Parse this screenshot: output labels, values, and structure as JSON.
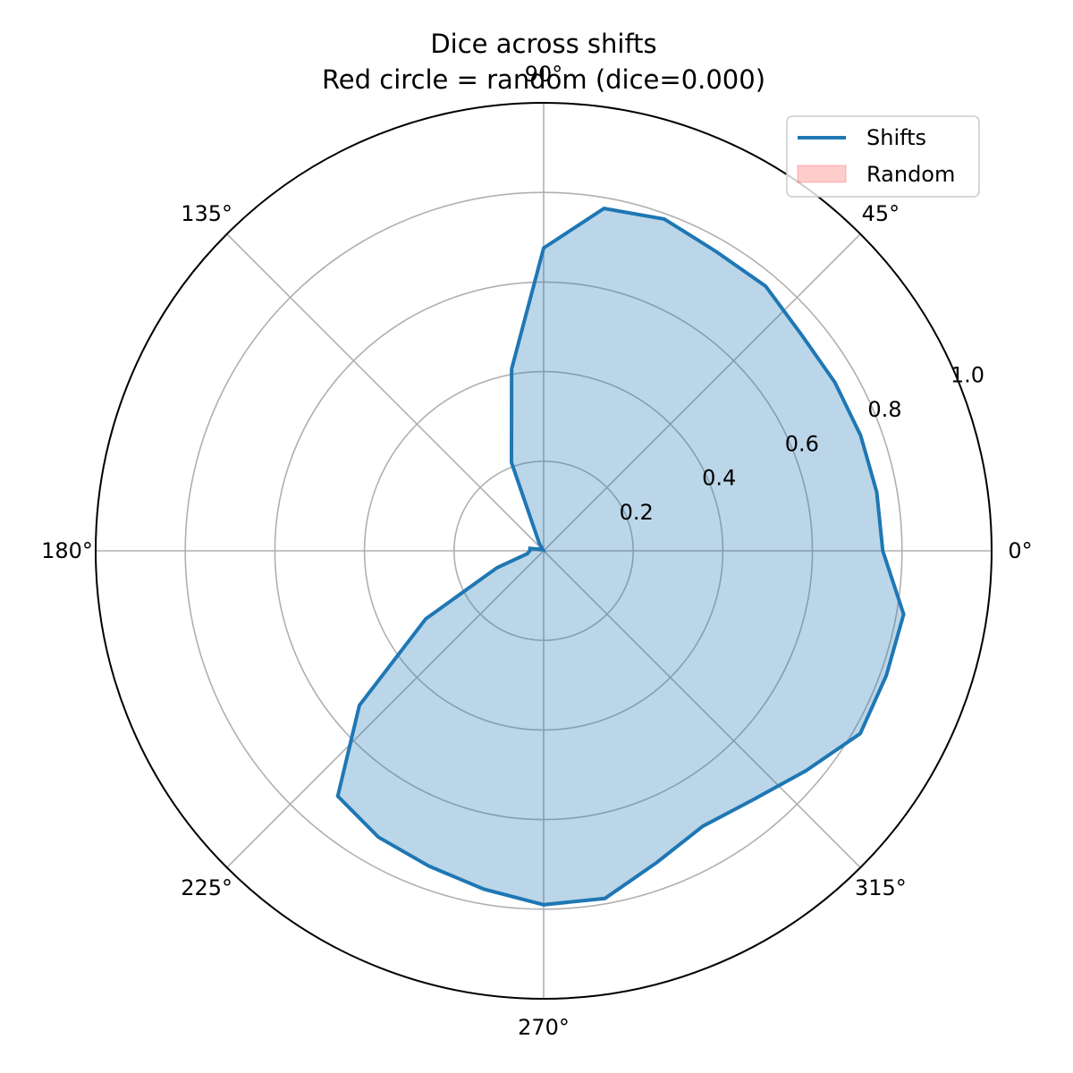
{
  "chart_data": {
    "type": "line",
    "projection": "polar",
    "title": [
      "Dice across shifts",
      "Red circle = random (dice=0.000)"
    ],
    "angle_unit": "degrees",
    "theta_ticks": [
      0,
      45,
      90,
      135,
      180,
      225,
      270,
      315
    ],
    "theta_tick_labels": [
      "0°",
      "45°",
      "90°",
      "135°",
      "180°",
      "225°",
      "270°",
      "315°"
    ],
    "r_ticks": [
      0.2,
      0.4,
      0.6,
      0.8,
      1.0
    ],
    "r_tick_labels": [
      "0.2",
      "0.4",
      "0.6",
      "0.8",
      "1.0"
    ],
    "rlim": [
      0,
      1.0
    ],
    "grid": true,
    "legend": {
      "position": "top-right",
      "entries": [
        "Shifts",
        "Random"
      ]
    },
    "series": [
      {
        "name": "Shifts",
        "color": "#1f77b4",
        "fill_color": "#1f77b4",
        "fill_alpha": 0.3,
        "points": [
          {
            "theta": 0,
            "r": 0.757
          },
          {
            "theta": 10,
            "r": 0.755
          },
          {
            "theta": 20,
            "r": 0.753
          },
          {
            "theta": 30,
            "r": 0.751
          },
          {
            "theta": 40,
            "r": 0.751
          },
          {
            "theta": 50,
            "r": 0.771
          },
          {
            "theta": 60,
            "r": 0.771
          },
          {
            "theta": 70,
            "r": 0.788
          },
          {
            "theta": 80,
            "r": 0.776
          },
          {
            "theta": 90,
            "r": 0.676
          },
          {
            "theta": 100,
            "r": 0.412
          },
          {
            "theta": 110,
            "r": 0.21
          },
          {
            "theta": 120,
            "r": 0.02
          },
          {
            "theta": 130,
            "r": 0.003
          },
          {
            "theta": 140,
            "r": 0.004
          },
          {
            "theta": 150,
            "r": 0.005
          },
          {
            "theta": 160,
            "r": 0.01
          },
          {
            "theta": 170,
            "r": 0.031
          },
          {
            "theta": 180,
            "r": 0.031
          },
          {
            "theta": 190,
            "r": 0.037
          },
          {
            "theta": 200,
            "r": 0.111
          },
          {
            "theta": 210,
            "r": 0.304
          },
          {
            "theta": 220,
            "r": 0.537
          },
          {
            "theta": 230,
            "r": 0.715
          },
          {
            "theta": 240,
            "r": 0.738
          },
          {
            "theta": 250,
            "r": 0.749
          },
          {
            "theta": 260,
            "r": 0.767
          },
          {
            "theta": 270,
            "r": 0.79
          },
          {
            "theta": 280,
            "r": 0.788
          },
          {
            "theta": 290,
            "r": 0.74
          },
          {
            "theta": 300,
            "r": 0.71
          },
          {
            "theta": 310,
            "r": 0.726
          },
          {
            "theta": 320,
            "r": 0.764
          },
          {
            "theta": 330,
            "r": 0.816
          },
          {
            "theta": 340,
            "r": 0.814
          },
          {
            "theta": 350,
            "r": 0.816
          }
        ]
      },
      {
        "name": "Random",
        "kind": "circle",
        "r": 0.0,
        "color": "#ff0000",
        "fill_alpha": 0.2
      }
    ]
  }
}
